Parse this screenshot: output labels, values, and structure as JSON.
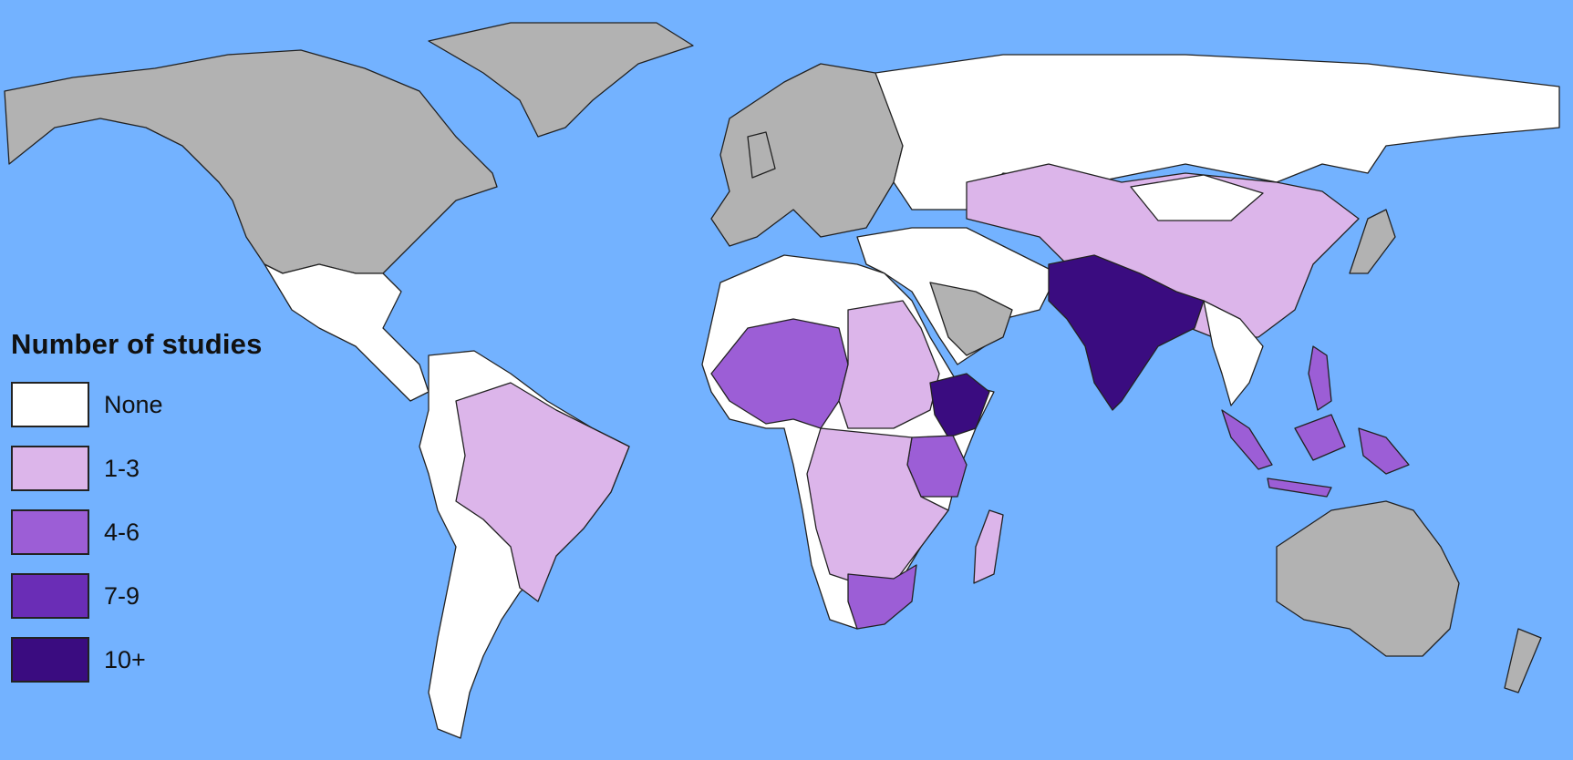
{
  "legend": {
    "title": "Number of studies",
    "items": [
      {
        "label": "None",
        "color": "#ffffff"
      },
      {
        "label": "1-3",
        "color": "#dcb5ea"
      },
      {
        "label": "4-6",
        "color": "#9c5ed6"
      },
      {
        "label": "7-9",
        "color": "#6a2db6"
      },
      {
        "label": "10+",
        "color": "#3a0c80"
      }
    ]
  },
  "colors": {
    "ocean": "#73b2ff",
    "no_data": "#b2b2b2"
  },
  "regions": {
    "north_america": "no_data",
    "greenland": "no_data",
    "mexico_central_america": "None",
    "south_america_other": "None",
    "brazil": "1-3",
    "europe": "no_data",
    "russia": "None",
    "china_central_asia": "1-3",
    "mongolia": "None",
    "middle_east": "None",
    "arabia": "no_data",
    "india_pakistan": "10+",
    "southeast_asia": "None",
    "indonesia": "4-6",
    "north_africa": "None",
    "west_africa": "4-6",
    "sahel_central_africa": "1-3",
    "ethiopia": "10+",
    "east_africa": "4-6",
    "southern_africa": "1-3",
    "south_africa": "4-6",
    "madagascar": "1-3",
    "australia": "no_data",
    "new_zealand": "no_data",
    "japan": "no_data"
  }
}
